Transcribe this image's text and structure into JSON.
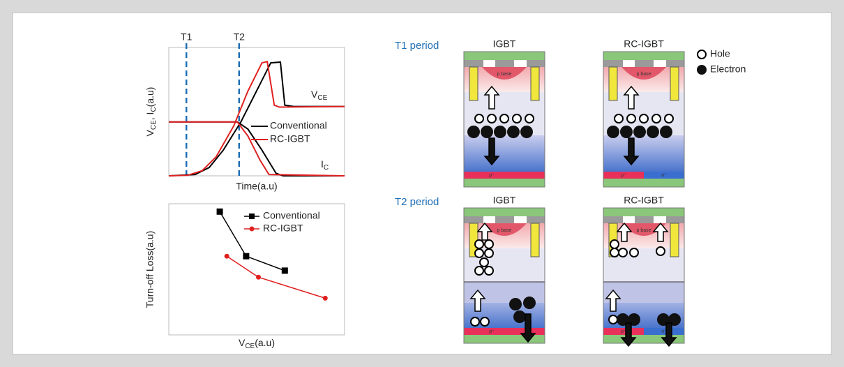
{
  "chart_data": [
    {
      "type": "line",
      "x_label": "Time(a.u)",
      "y_label": [
        "V",
        "CE",
        ", I",
        "C",
        "(a.u)"
      ],
      "xlim": [
        0,
        100
      ],
      "ylim": [
        0,
        100
      ],
      "markers": [
        {
          "label": "T1",
          "x": 10
        },
        {
          "label": "T2",
          "x": 40
        }
      ],
      "vce_label": [
        "V",
        "CE"
      ],
      "ic_label": [
        "I",
        "C"
      ],
      "series": [
        {
          "name": "Conventional",
          "color": "#000000",
          "x": [
            0,
            15,
            23,
            31,
            41,
            51,
            58,
            63.5,
            66,
            71,
            100
          ],
          "values": [
            0,
            1,
            6.5,
            20,
            42,
            69,
            88,
            88.6,
            55,
            54,
            54
          ]
        },
        {
          "name": "RC-IGBT",
          "color": "#e02020",
          "x": [
            0,
            11,
            19,
            27,
            37,
            45,
            53,
            56,
            60,
            63,
            100
          ],
          "values": [
            0,
            0.5,
            4,
            15,
            39,
            66,
            88,
            89,
            55,
            53.5,
            54
          ]
        },
        {
          "name": "Conventional",
          "color": "#000000",
          "x": [
            0,
            39,
            45,
            53,
            61,
            65,
            100
          ],
          "values": [
            42,
            42,
            36.4,
            20,
            2,
            0,
            0
          ]
        },
        {
          "name": "RC-IGBT",
          "color": "#e02020",
          "x": [
            0,
            39,
            45,
            52,
            57,
            100
          ],
          "values": [
            42,
            42,
            31,
            12,
            1,
            0
          ]
        }
      ]
    },
    {
      "type": "line-marker",
      "x_label": [
        "V",
        "CE",
        "(a.u)"
      ],
      "y_label": "Turn-off Loss(a.u)",
      "xlim": [
        0,
        100
      ],
      "ylim": [
        0,
        100
      ],
      "series": [
        {
          "name": "Conventional",
          "color": "#000000",
          "marker": "square",
          "x": [
            29,
            44,
            66
          ],
          "values": [
            94,
            60,
            49
          ]
        },
        {
          "name": "RC-IGBT",
          "color": "#e02020",
          "marker": "circle",
          "x": [
            33,
            51,
            89
          ],
          "values": [
            60,
            44,
            28
          ]
        }
      ]
    }
  ],
  "diagram": {
    "rows": [
      {
        "label": "T1 period",
        "devices": [
          "IGBT",
          "RC-IGBT"
        ]
      },
      {
        "label": "T2 period",
        "devices": [
          "IGBT",
          "RC-IGBT"
        ]
      }
    ],
    "legend": [
      "Hole",
      "Electron"
    ],
    "layer_labels": {
      "p_plus": "p⁺",
      "n_plus": "n⁺",
      "p_base": "p base"
    }
  }
}
